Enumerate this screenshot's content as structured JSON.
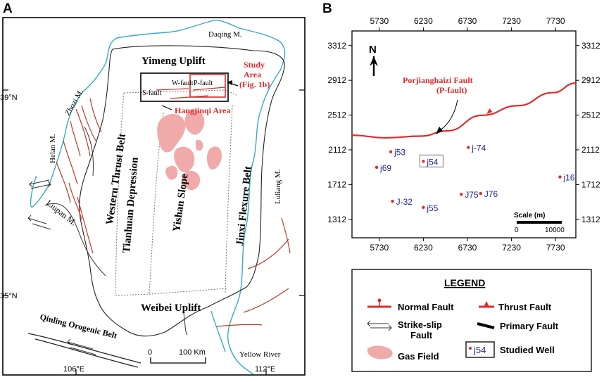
{
  "panel_a": {
    "label": "A",
    "lat_39": "39°N",
    "lat_35": "35°N",
    "lon_106": "106°E",
    "lon_112": "112°E",
    "labels": {
      "daqing": "Daqing M.",
      "yimeng": "Yimeng Uplift",
      "study_area": [
        "Study",
        "Area",
        "(Fig. 1b)"
      ],
      "wfault": "W-fault",
      "pfault": "P-fault",
      "sfault": "S-fault",
      "hangjinqi": "Hangjinqi Area",
      "zhuozi": "Zhozi M.",
      "helan": "Helan M.",
      "liupan": "Liupan M.",
      "western_thrust": "Western Thrust Belt",
      "tianhuan": "Tianhuan Depression",
      "yishan": "Yishan Slope",
      "jinxi": "Jinxi Flexure Belt",
      "luliang": "Luliang M.",
      "weibei": "Weibei Uplift",
      "qinling": "Qinling Orogenic Belt",
      "yellow_river": "Yellow River"
    },
    "scale": {
      "zero": "0",
      "km": "100 Km"
    }
  },
  "panel_b": {
    "label": "B",
    "north": "N",
    "fault_label": [
      "Porjianghaizi Fault",
      "(P-fault)"
    ],
    "scale_title": "Scale (m)",
    "scale_zero": "0",
    "scale_max": "10000",
    "chart_data": {
      "type": "scatter",
      "title": "",
      "x_ticks": [
        5730,
        6230,
        6730,
        7230,
        7730
      ],
      "y_ticks": [
        3312,
        2912,
        2512,
        2112,
        1712,
        1312
      ],
      "xlim": [
        5420,
        7960
      ],
      "ylim": [
        1100,
        3480
      ],
      "wells": [
        {
          "name": "j53",
          "x": 5860,
          "y": 2090
        },
        {
          "name": "j54",
          "x": 6230,
          "y": 1980,
          "studied": true
        },
        {
          "name": "j-74",
          "x": 6740,
          "y": 2140
        },
        {
          "name": "j69",
          "x": 5700,
          "y": 1910
        },
        {
          "name": "j16",
          "x": 7780,
          "y": 1800
        },
        {
          "name": "J75",
          "x": 6660,
          "y": 1600
        },
        {
          "name": "J76",
          "x": 6880,
          "y": 1610
        },
        {
          "name": "J-32",
          "x": 5880,
          "y": 1520
        },
        {
          "name": "j55",
          "x": 6230,
          "y": 1450
        }
      ],
      "fault": {
        "name": "Porjianghaizi Fault (P-fault)",
        "x": [
          5420,
          5800,
          6200,
          6500,
          6900,
          7300,
          7700,
          7960
        ],
        "y": [
          2280,
          2250,
          2270,
          2330,
          2510,
          2620,
          2770,
          2880
        ]
      }
    }
  },
  "legend": {
    "title": "LEGEND",
    "normal_fault": "Normal Fault",
    "thrust_fault": "Thrust Fault",
    "strike_slip": [
      "Strike-slip",
      "Fault"
    ],
    "primary_fault": "Primary Fault",
    "gas_field": "Gas Field",
    "studied_well": "Studied Well",
    "well_sample": "j54"
  },
  "colors": {
    "fault_red": "#e02b2b",
    "river_blue": "#3aa9c9",
    "gas_pink": "#efaaa9",
    "well_blue": "#1f2a9a",
    "label_red": "#e02b2b"
  }
}
